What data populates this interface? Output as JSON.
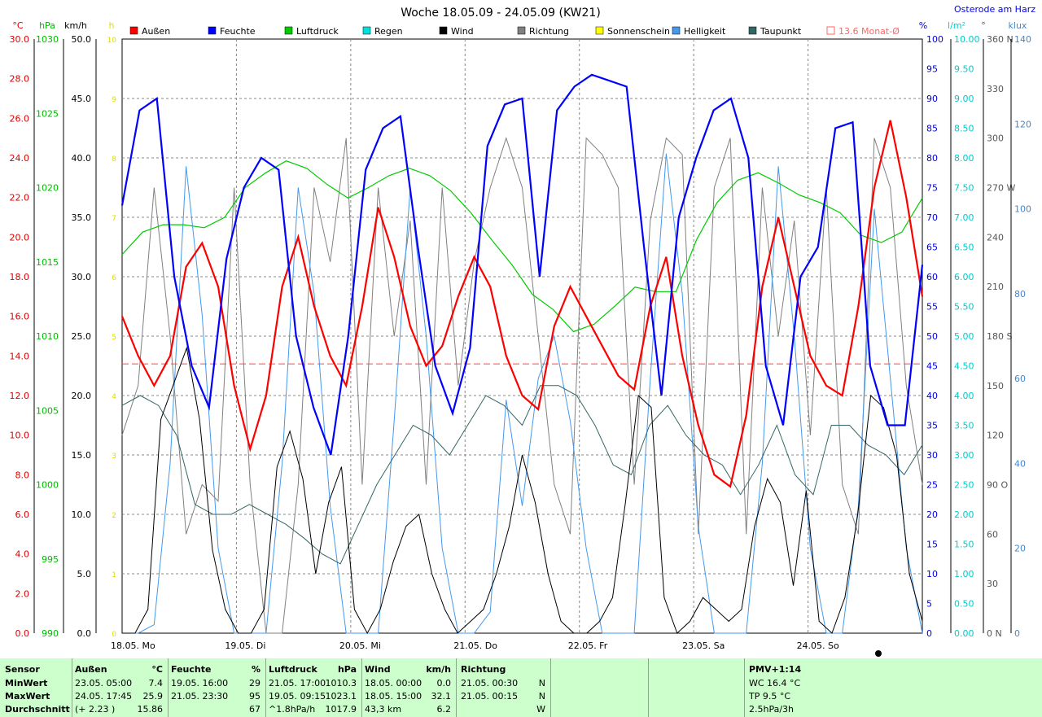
{
  "title": "Woche 18.05.09 - 24.05.09 (KW21)",
  "location": "Osterode am Harz",
  "legend": [
    {
      "label": "Außen",
      "color": "#ff0000"
    },
    {
      "label": "Feuchte",
      "color": "#0000ff"
    },
    {
      "label": "Luftdruck",
      "color": "#00cc00"
    },
    {
      "label": "Regen",
      "color": "#00e0e0"
    },
    {
      "label": "Wind",
      "color": "#000000"
    },
    {
      "label": "Richtung",
      "color": "#808080"
    },
    {
      "label": "Sonnenschein",
      "color": "#ffff00"
    },
    {
      "label": "Helligkeit",
      "color": "#4499ee"
    },
    {
      "label": "Taupunkt",
      "color": "#336666"
    },
    {
      "label": "13.6 Monat-Ø",
      "color": "#ff6666"
    }
  ],
  "chart_data": {
    "type": "line",
    "x_labels": [
      "18.05. Mo",
      "19.05. Di",
      "20.05. Mi",
      "21.05. Do",
      "22.05. Fr",
      "23.05. Sa",
      "24.05. So"
    ],
    "month_avg_temp": 13.6,
    "axes": {
      "temp": {
        "unit": "°C",
        "min": 0,
        "max": 30,
        "ticks": [
          "0.0",
          "2.0",
          "4.0",
          "6.0",
          "8.0",
          "10.0",
          "12.0",
          "14.0",
          "16.0",
          "18.0",
          "20.0",
          "22.0",
          "24.0",
          "26.0",
          "28.0",
          "30.0"
        ],
        "color": "#dd0000"
      },
      "pressure": {
        "unit": "hPa",
        "min": 990,
        "max": 1030,
        "ticks": [
          "990",
          "995",
          "1000",
          "1005",
          "1010",
          "1015",
          "1020",
          "1025",
          "1030"
        ],
        "color": "#00bb00"
      },
      "wind": {
        "unit": "km/h",
        "min": 0,
        "max": 50,
        "ticks": [
          "0.0",
          "5.0",
          "10.0",
          "15.0",
          "20.0",
          "25.0",
          "30.0",
          "35.0",
          "40.0",
          "45.0",
          "50.0"
        ],
        "color": "#000000"
      },
      "sun": {
        "unit": "h",
        "min": 0,
        "max": 10,
        "ticks": [
          "0",
          "1",
          "2",
          "3",
          "4",
          "5",
          "6",
          "7",
          "8",
          "9",
          "10"
        ],
        "color": "#dddd00"
      },
      "humidity": {
        "unit": "%",
        "min": 0,
        "max": 100,
        "ticks": [
          "0",
          "5",
          "10",
          "15",
          "20",
          "25",
          "30",
          "35",
          "40",
          "45",
          "50",
          "55",
          "60",
          "65",
          "70",
          "75",
          "80",
          "85",
          "90",
          "95",
          "100"
        ],
        "color": "#0000dd"
      },
      "rain": {
        "unit": "l/m²",
        "min": 0,
        "max": 10,
        "ticks": [
          "0.00",
          "0.50",
          "1.00",
          "1.50",
          "2.00",
          "2.50",
          "3.00",
          "3.50",
          "4.00",
          "4.50",
          "5.00",
          "5.50",
          "6.00",
          "6.50",
          "7.00",
          "7.50",
          "8.00",
          "8.50",
          "9.00",
          "9.50",
          "10.00"
        ],
        "color": "#00cccc"
      },
      "direction": {
        "unit": "°",
        "min": 0,
        "max": 360,
        "ticks": [
          "0",
          "30",
          "60",
          "90",
          "120",
          "150",
          "180",
          "210",
          "240",
          "270",
          "300",
          "330",
          "360"
        ],
        "suffix": {
          "0": "N",
          "90": "O",
          "180": "S",
          "270": "W",
          "360": "N"
        },
        "color": "#555555"
      },
      "light": {
        "unit": "klux",
        "min": 0,
        "max": 140,
        "ticks": [
          "0",
          "20",
          "40",
          "60",
          "80",
          "100",
          "120",
          "140"
        ],
        "color": "#4488cc"
      }
    },
    "series": [
      {
        "name": "Außen",
        "axis": "temp",
        "color": "#ff0000",
        "values": [
          16.0,
          14.0,
          12.5,
          14.0,
          18.5,
          19.7,
          17.5,
          12.5,
          9.3,
          12.0,
          17.5,
          20.0,
          16.5,
          14.0,
          12.5,
          16.5,
          21.5,
          19.0,
          15.5,
          13.5,
          14.5,
          17.0,
          19.0,
          17.5,
          14.0,
          12.0,
          11.3,
          15.5,
          17.5,
          16.0,
          14.5,
          13.0,
          12.3,
          16.5,
          19.0,
          14.0,
          10.5,
          8.0,
          7.4,
          11.0,
          17.5,
          21.0,
          17.5,
          14.0,
          12.5,
          12.0,
          16.5,
          22.5,
          25.9,
          22.0,
          17.0
        ]
      },
      {
        "name": "Feuchte",
        "axis": "humidity",
        "color": "#0000ff",
        "values": [
          72,
          88,
          90,
          60,
          45,
          38,
          63,
          75,
          80,
          78,
          50,
          38,
          30,
          50,
          78,
          85,
          87,
          65,
          45,
          37,
          48,
          82,
          89,
          90,
          60,
          88,
          92,
          94,
          93,
          92,
          65,
          40,
          70,
          80,
          88,
          90,
          80,
          45,
          35,
          60,
          65,
          85,
          86,
          45,
          35,
          35,
          62
        ]
      },
      {
        "name": "Luftdruck",
        "axis": "pressure",
        "color": "#00cc00",
        "values": [
          1015.5,
          1017.0,
          1017.5,
          1017.5,
          1017.3,
          1018.0,
          1020.0,
          1021.0,
          1021.8,
          1021.3,
          1020.2,
          1019.3,
          1020.0,
          1020.8,
          1021.3,
          1020.8,
          1019.8,
          1018.3,
          1016.5,
          1014.8,
          1012.8,
          1011.8,
          1010.3,
          1010.8,
          1012.0,
          1013.3,
          1013.0,
          1013.0,
          1016.5,
          1019.0,
          1020.5,
          1021.0,
          1020.3,
          1019.5,
          1019.0,
          1018.3,
          1016.8,
          1016.3,
          1017.0,
          1019.3
        ]
      },
      {
        "name": "Taupunkt",
        "axis": "temp",
        "color": "#336666",
        "values": [
          11.5,
          12.0,
          11.5,
          10.0,
          6.5,
          6.0,
          6.0,
          6.5,
          6.0,
          5.5,
          4.8,
          4.0,
          3.5,
          5.5,
          7.5,
          9.0,
          10.5,
          10.0,
          9.0,
          10.5,
          12.0,
          11.5,
          10.5,
          12.5,
          12.5,
          12.0,
          10.5,
          8.5,
          8.0,
          10.5,
          11.5,
          10.0,
          9.0,
          8.5,
          7.0,
          8.5,
          10.5,
          8.0,
          7.0,
          10.5,
          10.5,
          9.5,
          9.0,
          8.0,
          9.5
        ]
      },
      {
        "name": "Helligkeit",
        "axis": "light",
        "color": "#4499ee",
        "values": [
          0,
          0,
          2,
          40,
          110,
          75,
          20,
          0,
          0,
          0,
          40,
          105,
          80,
          30,
          0,
          0,
          0,
          50,
          105,
          70,
          20,
          0,
          0,
          5,
          55,
          30,
          60,
          70,
          50,
          20,
          0,
          0,
          0,
          60,
          113,
          80,
          25,
          0,
          0,
          0,
          40,
          110,
          70,
          20,
          0,
          0,
          30,
          100,
          60,
          20,
          0
        ]
      },
      {
        "name": "Wind",
        "axis": "wind",
        "color": "#000000",
        "values": [
          0.0,
          0.0,
          2.0,
          18.0,
          21.0,
          24.0,
          18.0,
          7.0,
          2.0,
          0.0,
          0.0,
          2.0,
          14.0,
          17.0,
          13.0,
          5.0,
          11.0,
          14.0,
          2.0,
          0.0,
          2.0,
          6.0,
          9.0,
          10.0,
          5.0,
          2.0,
          0.0,
          1.0,
          2.0,
          5.0,
          9.0,
          15.0,
          11.0,
          5.0,
          1.0,
          0.0,
          0.0,
          1.0,
          3.0,
          11.0,
          20.0,
          19.0,
          3.0,
          0.0,
          1.0,
          3.0,
          2.0,
          1.0,
          2.0,
          9.0,
          13.0,
          11.0,
          4.0,
          12.0,
          1.0,
          0.0,
          3.0,
          10.0,
          20.0,
          19.0,
          15.0,
          5.0,
          1.0
        ]
      },
      {
        "name": "Richtung",
        "axis": "direction",
        "color": "#808080",
        "values": [
          120,
          150,
          270,
          180,
          60,
          90,
          80,
          270,
          90,
          0,
          0,
          90,
          270,
          225,
          300,
          90,
          270,
          180,
          250,
          90,
          270,
          150,
          225,
          270,
          300,
          270,
          180,
          90,
          60,
          300,
          290,
          270,
          90,
          250,
          300,
          290,
          60,
          270,
          300,
          60,
          270,
          180,
          250,
          120,
          270,
          90,
          60,
          300,
          270,
          150,
          90
        ]
      },
      {
        "name": "Regen",
        "axis": "rain",
        "type": "bar",
        "color": "#00e0e0",
        "values": [
          1.0,
          0.3,
          0.1,
          0.0,
          0.0,
          0.0,
          0.0,
          0.0,
          0.05,
          0.0,
          0.0,
          0.0,
          0.0,
          0.05,
          0.0,
          0.0,
          0.0,
          0.05,
          0.0,
          0.0,
          0.0,
          0.0,
          0.0,
          4.0,
          8.5,
          1.0,
          0.5,
          0.0,
          0.0,
          0.0,
          0.0,
          0.2,
          0.1,
          0.0,
          0.0,
          0.0,
          0.0,
          0.0,
          0.1,
          0.0,
          0.05,
          0.0
        ]
      },
      {
        "name": "Sonnenschein",
        "axis": "sun",
        "type": "bar",
        "color": "#ffff00",
        "values": [
          1,
          1,
          1,
          1,
          1,
          1,
          1,
          1,
          1,
          1,
          0.5,
          0,
          0,
          0,
          1,
          1,
          1,
          1,
          1,
          1,
          1,
          1,
          1,
          1,
          1,
          0,
          0,
          0,
          1,
          1,
          1,
          1,
          1,
          1,
          1,
          1,
          1,
          1,
          1,
          1,
          1,
          0,
          0,
          0,
          0.5,
          0.5,
          0,
          0,
          1,
          1,
          1,
          1,
          1,
          1,
          1,
          1,
          1,
          1,
          0,
          0,
          1,
          1,
          1,
          1,
          1,
          1,
          1,
          1,
          1,
          1,
          1,
          1,
          0,
          0,
          0,
          1,
          1,
          1,
          1,
          1,
          1,
          1,
          1,
          1,
          1,
          1,
          1,
          1
        ]
      }
    ],
    "grid": true
  },
  "table": {
    "columns": [
      {
        "head": "Sensor",
        "rows": [
          "MinWert",
          "MaxWert",
          "Durchschnitt"
        ]
      },
      {
        "head": "Außen",
        "unit": "°C",
        "rows": [
          [
            "23.05.  05:00",
            "7.4"
          ],
          [
            "24.05.  17:45",
            "25.9"
          ],
          [
            "(+ 2.23 )",
            "15.86"
          ]
        ]
      },
      {
        "head": "Feuchte",
        "unit": "%",
        "rows": [
          [
            "19.05.  16:00",
            "29"
          ],
          [
            "21.05.  23:30",
            "95"
          ],
          [
            "",
            "67"
          ]
        ]
      },
      {
        "head": "Luftdruck",
        "unit": "hPa",
        "rows": [
          [
            "21.05.  17:00",
            "1010.3"
          ],
          [
            "19.05.  09:15",
            "1023.1"
          ],
          [
            "^1.8hPa/h",
            "1017.9"
          ]
        ]
      },
      {
        "head": "Wind",
        "unit": "km/h",
        "rows": [
          [
            "18.05.  00:00",
            "0.0"
          ],
          [
            "18.05.  15:00",
            "32.1"
          ],
          [
            "43,3 km",
            "6.2"
          ]
        ]
      },
      {
        "head": "Richtung",
        "unit": "",
        "rows": [
          [
            "21.05.  00:30",
            "N"
          ],
          [
            "21.05.  00:15",
            "N"
          ],
          [
            "",
            "W"
          ]
        ]
      },
      {
        "head": "PMV+1:14",
        "rows": [
          "WC 16.4 °C",
          "TP 9.5 °C",
          "2.5hPa/3h"
        ]
      }
    ]
  }
}
